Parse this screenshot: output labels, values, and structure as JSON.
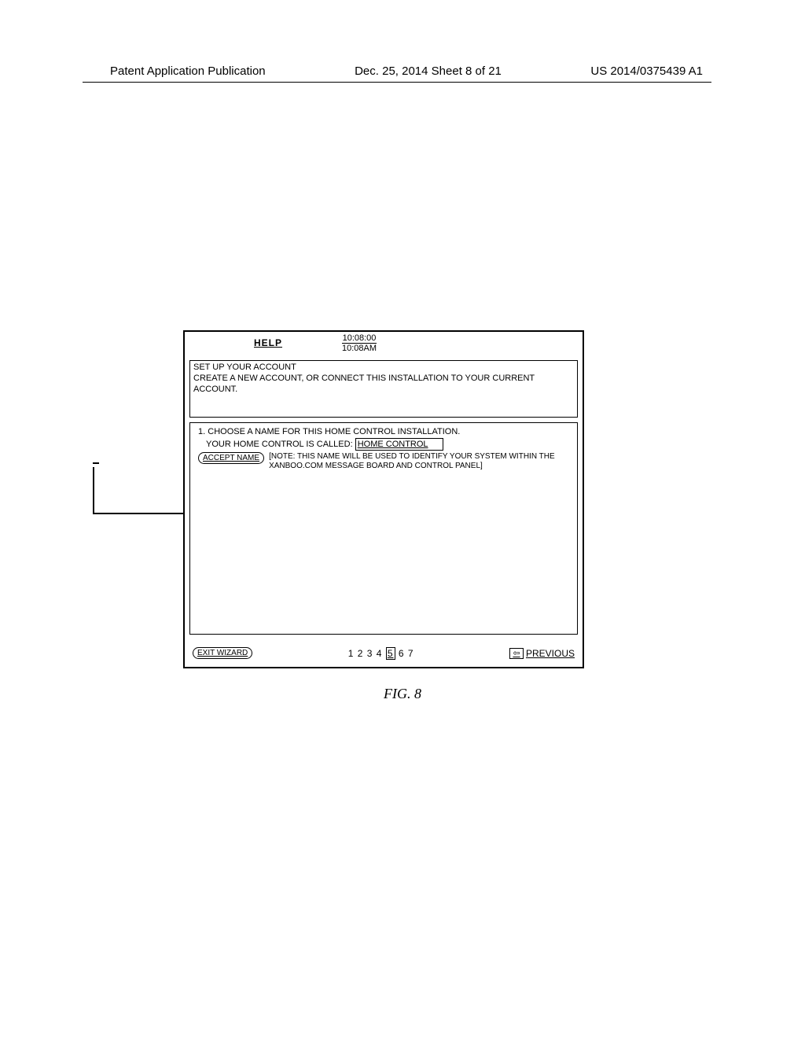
{
  "header": {
    "left": "Patent Application Publication",
    "center": "Dec. 25, 2014  Sheet 8 of 21",
    "right": "US 2014/0375439 A1"
  },
  "panel": {
    "help_label": "HELP",
    "time_top": "10:08:00",
    "time_bottom": "10:08AM",
    "title": "SET UP YOUR ACCOUNT",
    "subtitle": "CREATE A NEW ACCOUNT, OR CONNECT THIS INSTALLATION TO YOUR CURRENT ACCOUNT.",
    "step_number": "1.",
    "step_text": "CHOOSE A NAME FOR THIS HOME CONTROL INSTALLATION.",
    "called_label": "YOUR HOME CONTROL IS CALLED:",
    "home_control_value": "HOME CONTROL",
    "accept_button_label": "ACCEPT NAME",
    "note_text": "[NOTE: THIS NAME WILL BE USED TO IDENTIFY YOUR SYSTEM WITHIN THE XANBOO.COM MESSAGE BOARD AND CONTROL PANEL]",
    "exit_label": "EXIT WIZARD",
    "pager": {
      "pages": [
        "1",
        "2",
        "3",
        "4",
        "5",
        "6",
        "7"
      ],
      "current": "5"
    },
    "previous_label": "PREVIOUS",
    "previous_arrow": "⇦"
  },
  "figure_label": "FIG. 8",
  "colors": {
    "text": "#000000",
    "background": "#ffffff",
    "border": "#000000"
  }
}
